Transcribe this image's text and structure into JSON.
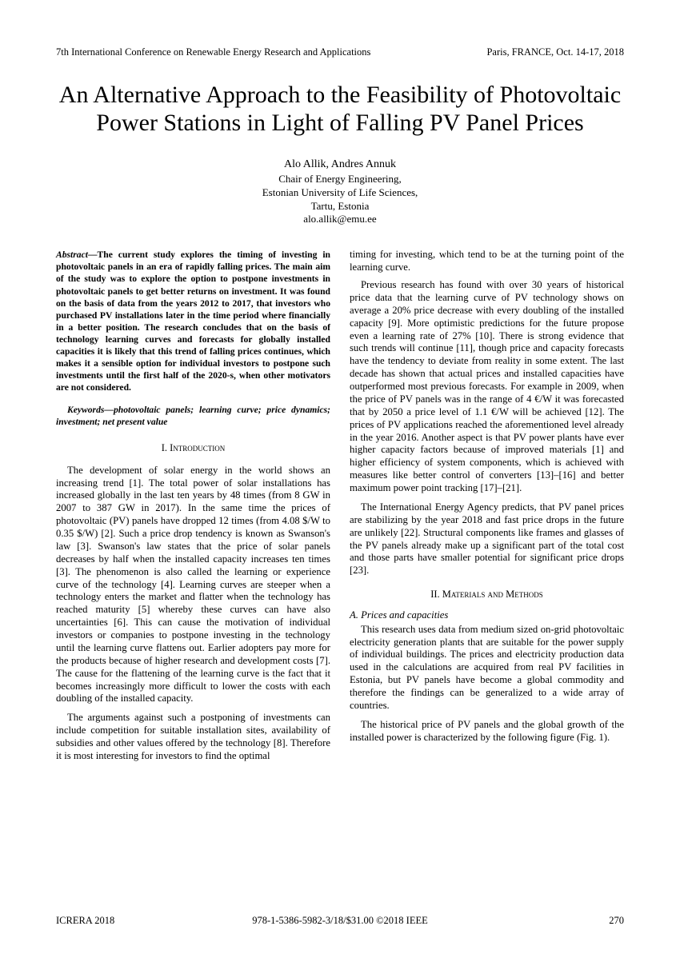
{
  "header": {
    "conference": "7th International Conference on Renewable Energy Research and Applications",
    "location_date": "Paris, FRANCE, Oct. 14-17, 2018"
  },
  "title": "An Alternative Approach to the Feasibility of Photovoltaic Power Stations in Light of Falling PV Panel Prices",
  "authors": "Alo Allik, Andres Annuk",
  "affiliation": {
    "line1": "Chair of Energy Engineering,",
    "line2": "Estonian University of Life Sciences,",
    "line3": "Tartu, Estonia",
    "email": "alo.allik@emu.ee"
  },
  "abstract": {
    "label": "Abstract—",
    "text": "The current study explores the timing of investing in photovoltaic panels in an era of rapidly falling prices. The main aim of the study was to explore the option to postpone investments in photovoltaic panels to get better returns on investment. It was found on the basis of data from the years 2012 to 2017, that investors who purchased PV installations later in the time period where financially in a better position. The research concludes that on the basis of technology learning curves and forecasts for globally installed capacities it is likely that this trend of falling prices continues, which makes it a sensible option for individual investors to postpone such investments until the first half of the 2020-s, when other motivators are not considered."
  },
  "keywords": "Keywords—photovoltaic panels; learning curve; price dynamics; investment; net present value",
  "sections": {
    "intro_heading": "I.    Introduction",
    "intro_p1": "The development of solar energy in the world shows an increasing trend [1]. The total power of solar installations has increased globally in the last ten years by 48 times (from 8 GW in 2007 to 387 GW in 2017). In the same time the prices of photovoltaic (PV) panels have dropped 12 times (from 4.08 $/W to 0.35 $/W) [2]. Such a price drop tendency is known as Swanson's law [3]. Swanson's law states that the price of solar panels decreases by half when the installed capacity increases ten times [3]. The phenomenon is also called the learning or experience curve of the technology [4]. Learning curves are steeper when a technology enters the market and flatter when the technology has reached maturity [5] whereby these curves can have also uncertainties [6]. This can cause the motivation of individual investors or companies to postpone investing in the technology until the learning curve flattens out. Earlier adopters pay more for the products because of higher research and development costs [7]. The cause for the flattening of the learning curve is the fact that it becomes increasingly more difficult to lower the costs with each doubling of the installed capacity.",
    "intro_p2": "The arguments against such a postponing of investments can include competition for suitable installation sites, availability of subsidies and other values offered by the technology [8]. Therefore it is most interesting for investors to find the optimal",
    "right_p1": "timing for investing, which tend to be at the turning point of the learning curve.",
    "right_p2": "Previous research has found with over 30 years of historical price data that the learning curve of PV technology shows on average a 20% price decrease with every doubling of the installed capacity [9]. More optimistic predictions for the future propose even a learning rate of 27% [10]. There is strong evidence that such trends will continue [11], though price and capacity forecasts have the tendency to deviate from reality in some extent. The last decade has shown that actual prices and installed capacities have outperformed most previous forecasts. For example in 2009, when the price of PV panels was in the range of 4 €/W it was forecasted that by 2050 a price level of 1.1 €/W will be achieved [12]. The prices of PV applications reached the aforementioned level already in the year 2016. Another aspect is that PV power plants have ever higher capacity factors because of improved materials [1] and higher efficiency of system components, which is achieved with measures like better control of converters [13]–[16] and better maximum power point tracking [17]–[21].",
    "right_p3": "The International Energy Agency predicts, that PV panel prices are stabilizing by the year 2018 and fast price drops in the future are unlikely [22]. Structural components like frames and glasses of the PV panels already make up a significant part of the total cost and those parts have smaller potential for significant price drops [23].",
    "methods_heading": "II.    Materials and Methods",
    "subsection_a": "A.  Prices and capacities",
    "methods_p1": "This research uses data from medium sized on-grid photovoltaic electricity generation plants that are suitable for the power supply of individual buildings. The prices and electricity production data used in the calculations are acquired from real PV facilities in Estonia, but PV panels have become a global commodity and therefore the findings can be generalized to a wide array of countries.",
    "methods_p2": "The historical price of PV panels and the global growth of the installed power is characterized by the following figure (Fig. 1)."
  },
  "footer": {
    "venue": "ICRERA 2018",
    "isbn": "978-1-5386-5982-3/18/$31.00 ©2018 IEEE",
    "page": "270"
  }
}
